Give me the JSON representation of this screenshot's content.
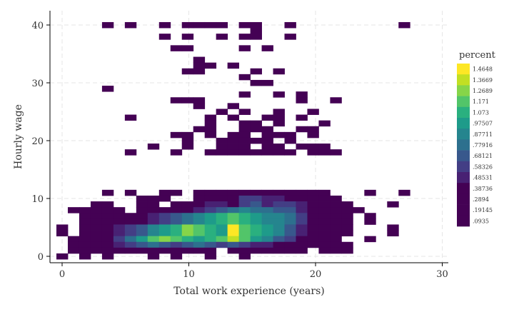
{
  "chart_data": {
    "type": "heatmap",
    "title": "",
    "xlabel": "Total work experience (years)",
    "ylabel": "Hourly wage",
    "xlim": [
      -0.5,
      30.5
    ],
    "ylim": [
      -0.5,
      42.5
    ],
    "x_ticks": [
      0,
      10,
      20,
      30
    ],
    "y_ticks": [
      0,
      10,
      20,
      30,
      40
    ],
    "x_tick_labels": [
      "0",
      "10",
      "20",
      "30"
    ],
    "y_tick_labels": [
      "0",
      "10",
      "20",
      "30",
      "40"
    ],
    "grid": true,
    "legend": {
      "title": "percent",
      "placement": "right"
    },
    "color_scale": {
      "levels": [
        1.4648,
        1.3669,
        1.2689,
        1.171,
        1.073,
        0.97507,
        0.87711,
        0.77916,
        0.68121,
        0.58326,
        0.48531,
        0.38736,
        0.2894,
        0.19145,
        0.0935
      ],
      "labels": [
        "1.4648",
        "1.3669",
        "1.2689",
        "1.171",
        "1.073",
        ".97507",
        ".87711",
        ".77916",
        ".68121",
        ".58326",
        ".48531",
        ".38736",
        ".2894",
        ".19145",
        ".0935"
      ],
      "colors": [
        "#fde725",
        "#c2df23",
        "#86d549",
        "#52c569",
        "#2ab07f",
        "#1e9b8a",
        "#25858e",
        "#2d708e",
        "#38588c",
        "#433e85",
        "#482173",
        "#440154",
        "#440154",
        "#440154",
        "#440154"
      ]
    },
    "bin_width_x": 0.9,
    "bin_height_y": 1.0,
    "cell_series_note": "cells: [x_bin_center, y_bin_center, percent]",
    "cells": [
      [
        3.6,
        40,
        0.0935
      ],
      [
        5.4,
        40,
        0.0935
      ],
      [
        8.1,
        40,
        0.0935
      ],
      [
        9.9,
        40,
        0.0935
      ],
      [
        10.8,
        40,
        0.0935
      ],
      [
        11.7,
        40,
        0.0935
      ],
      [
        12.6,
        40,
        0.0935
      ],
      [
        14.4,
        40,
        0.0935
      ],
      [
        15.3,
        40,
        0.19145
      ],
      [
        18.0,
        40,
        0.0935
      ],
      [
        27.0,
        40,
        0.0935
      ],
      [
        15.3,
        39,
        0.0935
      ],
      [
        8.1,
        38,
        0.0935
      ],
      [
        9.9,
        38,
        0.0935
      ],
      [
        12.6,
        38,
        0.0935
      ],
      [
        14.4,
        38,
        0.0935
      ],
      [
        15.3,
        38,
        0.0935
      ],
      [
        18.0,
        38,
        0.0935
      ],
      [
        9.0,
        36,
        0.0935
      ],
      [
        9.9,
        36,
        0.0935
      ],
      [
        14.4,
        36,
        0.0935
      ],
      [
        16.2,
        36,
        0.0935
      ],
      [
        10.8,
        34,
        0.0935
      ],
      [
        10.8,
        33,
        0.0935
      ],
      [
        11.7,
        33,
        0.0935
      ],
      [
        13.5,
        33,
        0.0935
      ],
      [
        9.9,
        32,
        0.0935
      ],
      [
        10.8,
        32,
        0.0935
      ],
      [
        15.3,
        32,
        0.0935
      ],
      [
        17.1,
        32,
        0.0935
      ],
      [
        14.4,
        31,
        0.0935
      ],
      [
        15.3,
        30,
        0.0935
      ],
      [
        16.2,
        30,
        0.0935
      ],
      [
        3.6,
        29,
        0.0935
      ],
      [
        14.4,
        28,
        0.0935
      ],
      [
        17.1,
        28,
        0.0935
      ],
      [
        18.9,
        28,
        0.0935
      ],
      [
        9.0,
        27,
        0.0935
      ],
      [
        9.9,
        27,
        0.0935
      ],
      [
        10.8,
        27,
        0.0935
      ],
      [
        18.9,
        27,
        0.0935
      ],
      [
        21.6,
        27,
        0.0935
      ],
      [
        10.8,
        26,
        0.0935
      ],
      [
        13.5,
        26,
        0.0935
      ],
      [
        12.6,
        25,
        0.0935
      ],
      [
        14.4,
        25,
        0.0935
      ],
      [
        17.1,
        25,
        0.0935
      ],
      [
        19.8,
        25,
        0.0935
      ],
      [
        5.4,
        24,
        0.0935
      ],
      [
        11.7,
        24,
        0.0935
      ],
      [
        13.5,
        24,
        0.0935
      ],
      [
        16.2,
        24,
        0.0935
      ],
      [
        17.1,
        24,
        0.0935
      ],
      [
        18.9,
        24,
        0.0935
      ],
      [
        11.7,
        23,
        0.0935
      ],
      [
        14.4,
        23,
        0.0935
      ],
      [
        15.3,
        23,
        0.0935
      ],
      [
        17.1,
        23,
        0.0935
      ],
      [
        20.7,
        23,
        0.0935
      ],
      [
        10.8,
        22,
        0.0935
      ],
      [
        11.7,
        22,
        0.0935
      ],
      [
        14.4,
        22,
        0.0935
      ],
      [
        15.3,
        22,
        0.0935
      ],
      [
        16.2,
        22,
        0.0935
      ],
      [
        18.9,
        22,
        0.0935
      ],
      [
        19.8,
        22,
        0.0935
      ],
      [
        9.0,
        21,
        0.0935
      ],
      [
        9.9,
        21,
        0.0935
      ],
      [
        11.7,
        21,
        0.0935
      ],
      [
        13.5,
        21,
        0.0935
      ],
      [
        14.4,
        21,
        0.0935
      ],
      [
        16.2,
        21,
        0.0935
      ],
      [
        17.1,
        21,
        0.19145
      ],
      [
        18.0,
        21,
        0.19145
      ],
      [
        19.8,
        21,
        0.0935
      ],
      [
        9.9,
        20,
        0.0935
      ],
      [
        12.6,
        20,
        0.0935
      ],
      [
        13.5,
        20,
        0.0935
      ],
      [
        14.4,
        20,
        0.0935
      ],
      [
        15.3,
        20,
        0.19145
      ],
      [
        16.2,
        20,
        0.0935
      ],
      [
        18.0,
        20,
        0.19145
      ],
      [
        7.2,
        19,
        0.0935
      ],
      [
        9.9,
        19,
        0.0935
      ],
      [
        12.6,
        19,
        0.0935
      ],
      [
        13.5,
        19,
        0.0935
      ],
      [
        14.4,
        19,
        0.0935
      ],
      [
        16.2,
        19,
        0.0935
      ],
      [
        17.1,
        19,
        0.0935
      ],
      [
        18.9,
        19,
        0.0935
      ],
      [
        19.8,
        19,
        0.19145
      ],
      [
        20.7,
        19,
        0.0935
      ],
      [
        5.4,
        18,
        0.0935
      ],
      [
        9.0,
        18,
        0.0935
      ],
      [
        11.7,
        18,
        0.0935
      ],
      [
        12.6,
        18,
        0.0935
      ],
      [
        13.5,
        18,
        0.0935
      ],
      [
        14.4,
        18,
        0.19145
      ],
      [
        15.3,
        18,
        0.2894
      ],
      [
        16.2,
        18,
        0.0935
      ],
      [
        17.1,
        18,
        0.0935
      ],
      [
        18.0,
        18,
        0.19145
      ],
      [
        19.8,
        18,
        0.0935
      ],
      [
        20.7,
        18,
        0.0935
      ],
      [
        21.6,
        18,
        0.0935
      ],
      [
        3.6,
        17,
        0.0935
      ],
      [
        5.4,
        17,
        0.0935
      ],
      [
        8.1,
        17,
        0.0935
      ],
      [
        9.0,
        17,
        0.0935
      ],
      [
        10.8,
        17,
        0.19145
      ],
      [
        11.7,
        17,
        0.19145
      ],
      [
        12.6,
        17,
        0.19145
      ],
      [
        13.5,
        17,
        0.19145
      ],
      [
        14.4,
        17,
        0.38736
      ],
      [
        15.3,
        17,
        0.38736
      ],
      [
        16.2,
        17,
        0.19145
      ],
      [
        17.1,
        17,
        0.2894
      ],
      [
        18.0,
        17,
        0.19145
      ],
      [
        18.9,
        17,
        0.19145
      ],
      [
        19.8,
        17,
        0.0935
      ],
      [
        20.7,
        17,
        0.19145
      ],
      [
        24.3,
        17,
        0.0935
      ],
      [
        27.0,
        17,
        0.0935
      ],
      [
        6.3,
        16,
        0.0935
      ],
      [
        7.2,
        16,
        0.19145
      ],
      [
        8.1,
        16,
        0.19145
      ],
      [
        10.8,
        16,
        0.2894
      ],
      [
        11.7,
        16,
        0.38736
      ],
      [
        12.6,
        16,
        0.2894
      ],
      [
        13.5,
        16,
        0.38736
      ],
      [
        14.4,
        16,
        0.58326
      ],
      [
        15.3,
        16,
        0.58326
      ],
      [
        16.2,
        16,
        0.48531
      ],
      [
        17.1,
        16,
        0.48531
      ],
      [
        18.0,
        16,
        0.38736
      ],
      [
        18.9,
        16,
        0.2894
      ],
      [
        19.8,
        16,
        0.19145
      ],
      [
        20.7,
        16,
        0.19145
      ],
      [
        21.6,
        16,
        0.0935
      ],
      [
        2.7,
        15,
        0.0935
      ],
      [
        3.6,
        15,
        0.0935
      ],
      [
        6.3,
        15,
        0.0935
      ],
      [
        7.2,
        15,
        0.19145
      ],
      [
        9.0,
        15,
        0.0935
      ],
      [
        9.9,
        15,
        0.19145
      ],
      [
        10.8,
        15,
        0.38736
      ],
      [
        11.7,
        15,
        0.48531
      ],
      [
        12.6,
        15,
        0.48531
      ],
      [
        13.5,
        15,
        0.38736
      ],
      [
        14.4,
        15,
        0.58326
      ],
      [
        15.3,
        15,
        0.68121
      ],
      [
        16.2,
        15,
        0.48531
      ],
      [
        17.1,
        15,
        0.58326
      ],
      [
        18.0,
        15,
        0.58326
      ],
      [
        18.9,
        15,
        0.48531
      ],
      [
        19.8,
        15,
        0.38736
      ],
      [
        20.7,
        15,
        0.38736
      ],
      [
        21.6,
        15,
        0.0935
      ],
      [
        22.5,
        15,
        0.0935
      ],
      [
        26.1,
        15,
        0.0935
      ]
    ]
  }
}
